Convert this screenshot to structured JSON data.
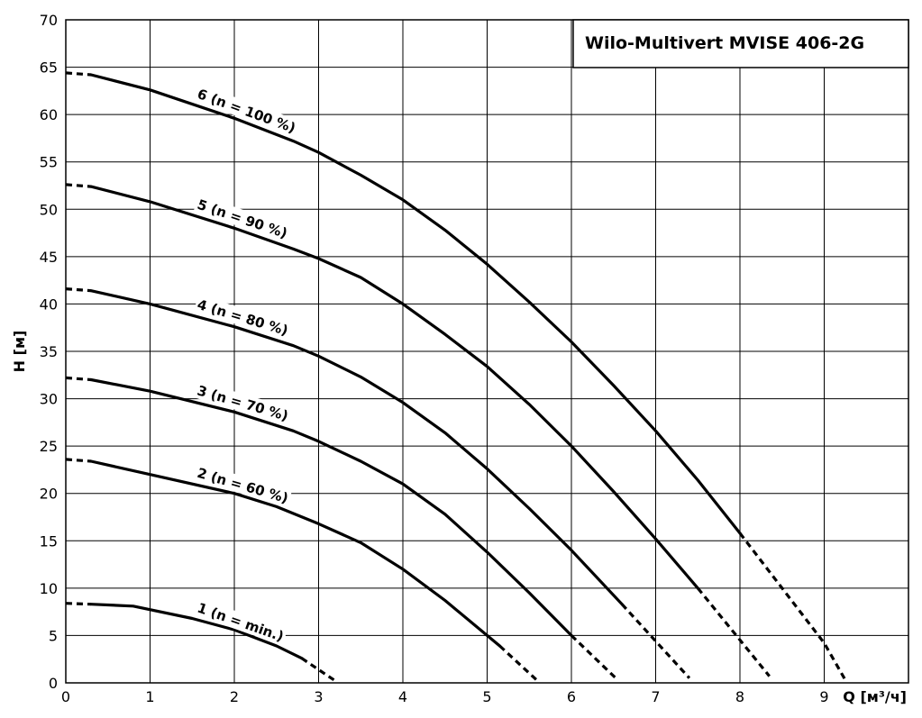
{
  "chart_data": {
    "type": "line",
    "title": "Wilo-Multivert MVISE 406-2G",
    "xlabel": "Q [м³/ч]",
    "ylabel": "H [м]",
    "xlim": [
      0,
      10
    ],
    "ylim": [
      0,
      70
    ],
    "xticks": [
      0,
      1,
      2,
      3,
      4,
      5,
      6,
      7,
      8,
      9
    ],
    "yticks": [
      0,
      5,
      10,
      15,
      20,
      25,
      30,
      35,
      40,
      45,
      50,
      55,
      60,
      65,
      70
    ],
    "grid": true,
    "series": [
      {
        "name": "1 (n = min.)",
        "solid": [
          [
            0.3,
            8.3
          ],
          [
            0.8,
            8.1
          ],
          [
            1.5,
            6.8
          ],
          [
            2.0,
            5.6
          ],
          [
            2.5,
            3.9
          ],
          [
            2.8,
            2.6
          ]
        ],
        "dashed_end": [
          [
            2.8,
            2.6
          ],
          [
            3.2,
            0.2
          ]
        ],
        "dashed_start": [
          [
            0.0,
            8.4
          ],
          [
            0.3,
            8.3
          ]
        ]
      },
      {
        "name": "2 (n = 60 %)",
        "solid": [
          [
            0.3,
            23.4
          ],
          [
            1.0,
            22.0
          ],
          [
            2.0,
            20.0
          ],
          [
            2.5,
            18.6
          ],
          [
            3.0,
            16.8
          ],
          [
            3.5,
            14.8
          ],
          [
            4.0,
            12.0
          ],
          [
            4.5,
            8.7
          ],
          [
            5.0,
            5.0
          ],
          [
            5.15,
            3.9
          ]
        ],
        "dashed_end": [
          [
            5.15,
            3.9
          ],
          [
            5.6,
            0.2
          ]
        ],
        "dashed_start": [
          [
            0.0,
            23.6
          ],
          [
            0.3,
            23.4
          ]
        ]
      },
      {
        "name": "3 (n = 70 %)",
        "solid": [
          [
            0.3,
            32.0
          ],
          [
            1.0,
            30.8
          ],
          [
            2.0,
            28.6
          ],
          [
            2.7,
            26.6
          ],
          [
            3.0,
            25.5
          ],
          [
            3.5,
            23.4
          ],
          [
            4.0,
            21.0
          ],
          [
            4.5,
            17.8
          ],
          [
            5.0,
            13.8
          ],
          [
            5.5,
            9.5
          ],
          [
            6.0,
            5.0
          ]
        ],
        "dashed_end": [
          [
            6.0,
            5.0
          ],
          [
            6.55,
            0.3
          ]
        ],
        "dashed_start": [
          [
            0.0,
            32.2
          ],
          [
            0.3,
            32.0
          ]
        ]
      },
      {
        "name": "4 (n = 80 %)",
        "solid": [
          [
            0.3,
            41.4
          ],
          [
            1.0,
            40.0
          ],
          [
            2.0,
            37.6
          ],
          [
            2.7,
            35.6
          ],
          [
            3.0,
            34.5
          ],
          [
            3.5,
            32.3
          ],
          [
            4.0,
            29.6
          ],
          [
            4.5,
            26.4
          ],
          [
            5.0,
            22.6
          ],
          [
            5.5,
            18.4
          ],
          [
            6.0,
            14.0
          ],
          [
            6.6,
            8.3
          ]
        ],
        "dashed_end": [
          [
            6.6,
            8.3
          ],
          [
            7.4,
            0.5
          ]
        ],
        "dashed_start": [
          [
            0.0,
            41.6
          ],
          [
            0.3,
            41.4
          ]
        ]
      },
      {
        "name": "5 (n = 90 %)",
        "solid": [
          [
            0.3,
            52.4
          ],
          [
            1.0,
            50.8
          ],
          [
            2.0,
            48.0
          ],
          [
            2.7,
            45.8
          ],
          [
            3.0,
            44.8
          ],
          [
            3.5,
            42.8
          ],
          [
            4.0,
            40.0
          ],
          [
            4.5,
            36.8
          ],
          [
            5.0,
            33.4
          ],
          [
            5.5,
            29.4
          ],
          [
            6.0,
            25.0
          ],
          [
            6.5,
            20.2
          ],
          [
            7.0,
            15.2
          ],
          [
            7.5,
            10.0
          ]
        ],
        "dashed_end": [
          [
            7.5,
            10.0
          ],
          [
            8.35,
            0.7
          ]
        ],
        "dashed_start": [
          [
            0.0,
            52.6
          ],
          [
            0.3,
            52.4
          ]
        ]
      },
      {
        "name": "6 (n = 100 %)",
        "solid": [
          [
            0.3,
            64.2
          ],
          [
            1.0,
            62.6
          ],
          [
            2.0,
            59.6
          ],
          [
            2.7,
            57.2
          ],
          [
            3.0,
            56.0
          ],
          [
            3.5,
            53.6
          ],
          [
            4.0,
            51.0
          ],
          [
            4.5,
            47.8
          ],
          [
            5.0,
            44.2
          ],
          [
            5.5,
            40.2
          ],
          [
            6.0,
            36.0
          ],
          [
            6.5,
            31.4
          ],
          [
            7.0,
            26.6
          ],
          [
            7.5,
            21.4
          ],
          [
            8.0,
            15.8
          ]
        ],
        "dashed_end": [
          [
            8.0,
            15.8
          ],
          [
            9.0,
            4.2
          ],
          [
            9.25,
            0.3
          ]
        ],
        "dashed_start": [
          [
            0.0,
            64.4
          ],
          [
            0.3,
            64.2
          ]
        ]
      }
    ]
  }
}
